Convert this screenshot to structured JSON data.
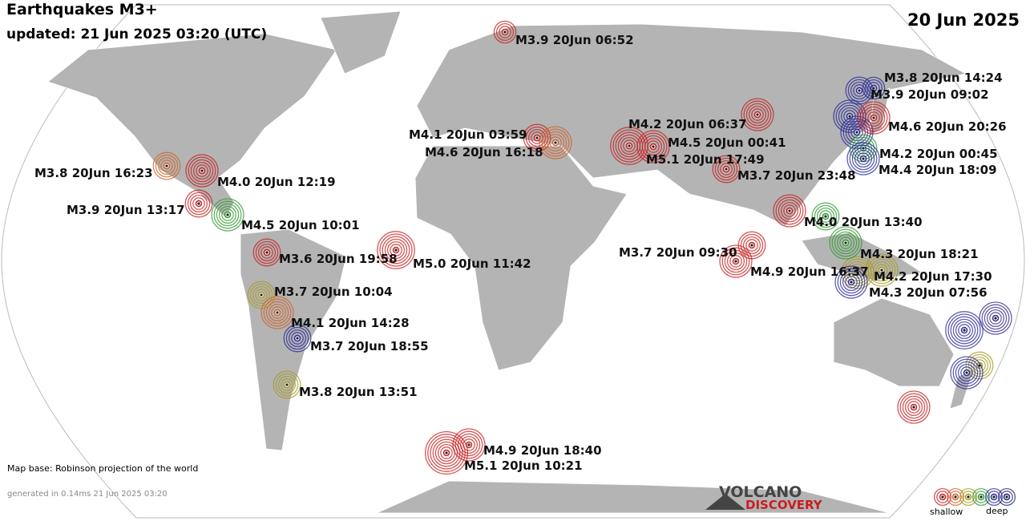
{
  "title": "Earthquakes M3+",
  "updated": "updated: 21 Jun 2025 03:20 (UTC)",
  "date": "20 Jun 2025",
  "map_base": "Map base: Robinson projection of the world",
  "generated": "generated in 0.14ms 21 Jun 2025 03:20",
  "logo": {
    "line1": "VOLCANO",
    "line2": "DISCOVERY"
  },
  "legend": {
    "shallow": "shallow",
    "deep": "deep"
  },
  "quakes": [
    {
      "label": "M3.9 20Jun 06:52",
      "color": "#c81e1e"
    },
    {
      "label": "M3.8 20Jun 14:24",
      "color": "#2a2a9a"
    },
    {
      "label": "M3.9 20Jun 09:02",
      "color": "#2a2a9a"
    },
    {
      "label": "M4.6 20Jun 20:26",
      "color": "#c81e1e"
    },
    {
      "label": "M4.2 20Jun 06:37",
      "color": "#c81e1e"
    },
    {
      "label": "M4.1 20Jun 03:59",
      "color": "#c81e1e"
    },
    {
      "label": "M4.6 20Jun 16:18",
      "color": "#d0602a"
    },
    {
      "label": "M4.5 20Jun 00:41",
      "color": "#c81e1e"
    },
    {
      "label": "M5.1 20Jun 17:49",
      "color": "#c81e1e"
    },
    {
      "label": "M4.2 20Jun 00:45",
      "color": "#2f9a2f"
    },
    {
      "label": "M4.4 20Jun 18:09",
      "color": "#2a2a9a"
    },
    {
      "label": "M3.8 20Jun 16:23",
      "color": "#d0602a"
    },
    {
      "label": "M4.0 20Jun 12:19",
      "color": "#c81e1e"
    },
    {
      "label": "M3.7 20Jun 23:48",
      "color": "#c81e1e"
    },
    {
      "label": "M3.9 20Jun 13:17",
      "color": "#c81e1e"
    },
    {
      "label": "M4.5 20Jun 10:01",
      "color": "#2f9a2f"
    },
    {
      "label": "M4.0 20Jun 13:40",
      "color": "#2f9a2f"
    },
    {
      "label": "M3.6 20Jun 19:58",
      "color": "#c81e1e"
    },
    {
      "label": "M5.0 20Jun 11:42",
      "color": "#c81e1e"
    },
    {
      "label": "M3.7 20Jun 09:30",
      "color": "#c81e1e"
    },
    {
      "label": "M4.3 20Jun 18:21",
      "color": "#2f9a2f"
    },
    {
      "label": "M4.9 20Jun 16:37",
      "color": "#c81e1e"
    },
    {
      "label": "M4.2 20Jun 17:30",
      "color": "#a89a1e"
    },
    {
      "label": "M4.3 20Jun 07:56",
      "color": "#2a2a9a"
    },
    {
      "label": "M3.7 20Jun 10:04",
      "color": "#a89a1e"
    },
    {
      "label": "M4.1 20Jun 14:28",
      "color": "#d0602a"
    },
    {
      "label": "M3.7 20Jun 18:55",
      "color": "#2a2a9a"
    },
    {
      "label": "M3.8 20Jun 13:51",
      "color": "#a89a1e"
    },
    {
      "label": "M4.9 20Jun 18:40",
      "color": "#c81e1e"
    },
    {
      "label": "M5.1 20Jun 10:21",
      "color": "#c81e1e"
    }
  ]
}
